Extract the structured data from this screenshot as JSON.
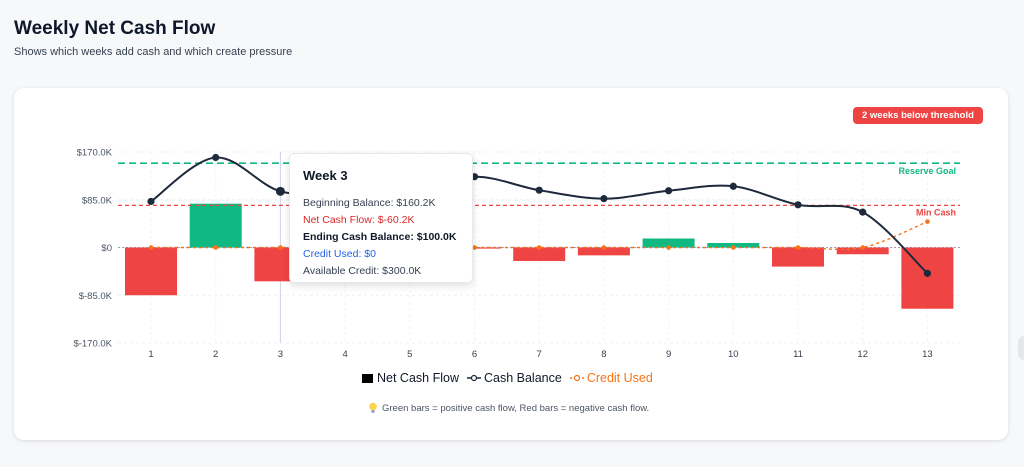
{
  "header": {
    "title": "Weekly Net Cash Flow",
    "subtitle": "Shows which weeks add cash and which create pressure"
  },
  "badge": {
    "label": "2 weeks below threshold",
    "color": "#ef4444"
  },
  "tooltip": {
    "title": "Week 3",
    "beginning": "Beginning Balance: $160.2K",
    "net": "Net Cash Flow: $-60.2K",
    "ending": "Ending Cash Balance: $100.0K",
    "credit": "Credit Used: $0",
    "available": "Available Credit: $300.0K"
  },
  "legend": {
    "items": [
      {
        "label": "Net Cash Flow",
        "icon": "square-bar-icon",
        "color": "#000000"
      },
      {
        "label": "Cash Balance",
        "icon": "line-circle-icon",
        "color": "#1e293b"
      },
      {
        "label": "Credit Used",
        "icon": "line-circle-icon",
        "color": "#f97316"
      }
    ]
  },
  "note": {
    "icon": "lightbulb-icon",
    "text": "Green bars = positive cash flow, Red bars = negative cash flow."
  },
  "chart_data": {
    "type": "bar",
    "categories": [
      "1",
      "2",
      "3",
      "4",
      "5",
      "6",
      "7",
      "8",
      "9",
      "10",
      "11",
      "12",
      "13"
    ],
    "ylim": [
      -170000,
      170000
    ],
    "yticks": [
      170000,
      85000,
      0,
      -85000,
      -170000
    ],
    "ytick_labels": [
      "$170.0K",
      "$85.0K",
      "$0",
      "$-85.0K",
      "$-170.0K"
    ],
    "grid": true,
    "legend_position": "bottom",
    "highlight_category": "3",
    "series": [
      {
        "name": "Net Cash Flow",
        "kind": "bar",
        "values": [
          -85000,
          78000,
          -60200,
          -2000,
          1000,
          -2000,
          -24000,
          -14000,
          16000,
          8000,
          -34000,
          -12000,
          -109000
        ],
        "positive_color": "#10b981",
        "negative_color": "#ef4444"
      },
      {
        "name": "Cash Balance",
        "kind": "line",
        "color": "#1e293b",
        "values": [
          82000,
          160200,
          100000,
          98000,
          99000,
          126000,
          102000,
          87000,
          101000,
          109000,
          76000,
          63000,
          -46000
        ]
      },
      {
        "name": "Credit Used",
        "kind": "line",
        "color": "#f97316",
        "dashed": true,
        "values": [
          0,
          0,
          0,
          0,
          0,
          0,
          0,
          0,
          0,
          0,
          0,
          0,
          46000
        ]
      }
    ],
    "reference_lines": [
      {
        "label": "Reserve Goal",
        "value": 150000,
        "color": "#10b981"
      },
      {
        "label": "Min Cash",
        "value": 75000,
        "color": "#ef4444"
      }
    ]
  }
}
